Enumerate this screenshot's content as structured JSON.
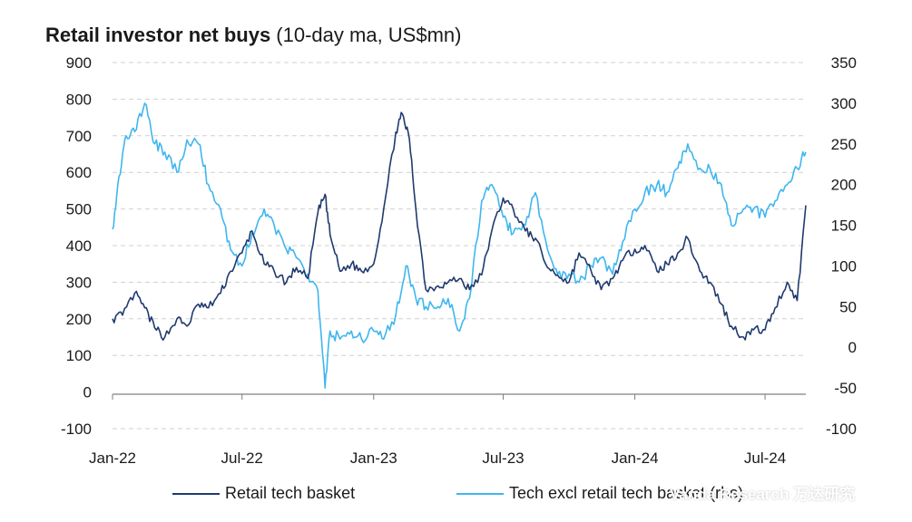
{
  "title": {
    "bold": "Retail investor net buys",
    "rest": " (10-day ma, US$mn)"
  },
  "watermark": "Vanda Research 万达研究",
  "chart_data": {
    "type": "line",
    "grid": "horizontal dashed",
    "legend_position": "bottom",
    "x_ticks": [
      "Jan-22",
      "Jul-22",
      "Jan-23",
      "Jul-23",
      "Jan-24",
      "Jul-24"
    ],
    "x_range": [
      "2022-01-01",
      "2024-08-27"
    ],
    "left_axis": {
      "ylim": [
        -100,
        900
      ],
      "ticks": [
        -100,
        0,
        100,
        200,
        300,
        400,
        500,
        600,
        700,
        800,
        900
      ]
    },
    "right_axis": {
      "ylim": [
        -100,
        350
      ],
      "ticks": [
        -100,
        -50,
        0,
        50,
        100,
        150,
        200,
        250,
        300,
        350
      ]
    },
    "series": [
      {
        "name": "Retail tech basket",
        "axis": "left",
        "color": "#1f3a6e",
        "x": [
          "2022-01-01",
          "2022-01-15",
          "2022-02-01",
          "2022-02-15",
          "2022-03-01",
          "2022-03-15",
          "2022-04-01",
          "2022-04-15",
          "2022-05-01",
          "2022-05-15",
          "2022-06-01",
          "2022-06-15",
          "2022-07-01",
          "2022-07-15",
          "2022-08-01",
          "2022-08-15",
          "2022-09-01",
          "2022-09-15",
          "2022-10-01",
          "2022-10-15",
          "2022-10-25",
          "2022-11-01",
          "2022-11-15",
          "2022-12-01",
          "2022-12-15",
          "2023-01-01",
          "2023-01-15",
          "2023-02-01",
          "2023-02-10",
          "2023-02-20",
          "2023-03-01",
          "2023-03-15",
          "2023-04-01",
          "2023-04-15",
          "2023-05-01",
          "2023-05-15",
          "2023-06-01",
          "2023-06-15",
          "2023-07-01",
          "2023-07-15",
          "2023-08-01",
          "2023-08-15",
          "2023-09-01",
          "2023-09-15",
          "2023-10-01",
          "2023-10-15",
          "2023-11-01",
          "2023-11-15",
          "2023-12-01",
          "2023-12-15",
          "2024-01-01",
          "2024-01-15",
          "2024-02-01",
          "2024-02-15",
          "2024-03-01",
          "2024-03-15",
          "2024-04-01",
          "2024-04-15",
          "2024-05-01",
          "2024-05-15",
          "2024-06-01",
          "2024-06-15",
          "2024-07-01",
          "2024-07-15",
          "2024-08-01",
          "2024-08-15",
          "2024-08-27"
        ],
        "values": [
          200,
          210,
          270,
          230,
          175,
          150,
          200,
          180,
          240,
          230,
          270,
          330,
          380,
          440,
          350,
          330,
          300,
          340,
          310,
          490,
          540,
          430,
          330,
          350,
          330,
          350,
          500,
          710,
          760,
          690,
          500,
          280,
          290,
          300,
          310,
          280,
          320,
          440,
          530,
          500,
          440,
          420,
          340,
          320,
          300,
          380,
          330,
          280,
          310,
          360,
          390,
          400,
          330,
          350,
          380,
          420,
          330,
          300,
          240,
          180,
          150,
          170,
          170,
          230,
          300,
          250,
          510
        ]
      },
      {
        "name": "Tech excl retail tech basket (rhs)",
        "axis": "right",
        "color": "#3fb6ee",
        "x": [
          "2022-01-01",
          "2022-01-10",
          "2022-01-20",
          "2022-02-01",
          "2022-02-15",
          "2022-03-01",
          "2022-03-15",
          "2022-04-01",
          "2022-04-15",
          "2022-05-01",
          "2022-05-15",
          "2022-06-01",
          "2022-06-15",
          "2022-07-01",
          "2022-07-15",
          "2022-08-01",
          "2022-08-15",
          "2022-09-01",
          "2022-09-15",
          "2022-10-01",
          "2022-10-15",
          "2022-10-25",
          "2022-11-01",
          "2022-11-15",
          "2022-12-01",
          "2022-12-15",
          "2023-01-01",
          "2023-01-15",
          "2023-02-01",
          "2023-02-15",
          "2023-03-01",
          "2023-03-15",
          "2023-04-01",
          "2023-04-15",
          "2023-05-01",
          "2023-05-15",
          "2023-06-01",
          "2023-06-15",
          "2023-07-01",
          "2023-07-15",
          "2023-08-01",
          "2023-08-15",
          "2023-09-01",
          "2023-09-15",
          "2023-10-01",
          "2023-10-15",
          "2023-11-01",
          "2023-11-15",
          "2023-12-01",
          "2023-12-15",
          "2024-01-01",
          "2024-01-15",
          "2024-02-01",
          "2024-02-15",
          "2024-03-01",
          "2024-03-15",
          "2024-04-01",
          "2024-04-15",
          "2024-05-01",
          "2024-05-15",
          "2024-06-01",
          "2024-06-15",
          "2024-07-01",
          "2024-07-15",
          "2024-08-01",
          "2024-08-15",
          "2024-08-27"
        ],
        "values": [
          145,
          210,
          260,
          265,
          300,
          250,
          240,
          215,
          255,
          250,
          200,
          170,
          120,
          100,
          140,
          170,
          150,
          120,
          110,
          90,
          70,
          -50,
          20,
          10,
          20,
          10,
          20,
          10,
          40,
          100,
          60,
          50,
          50,
          60,
          20,
          60,
          180,
          200,
          160,
          140,
          150,
          190,
          120,
          90,
          90,
          80,
          100,
          110,
          90,
          130,
          170,
          190,
          200,
          190,
          220,
          250,
          220,
          220,
          200,
          150,
          170,
          170,
          160,
          180,
          200,
          220,
          240
        ]
      }
    ]
  }
}
